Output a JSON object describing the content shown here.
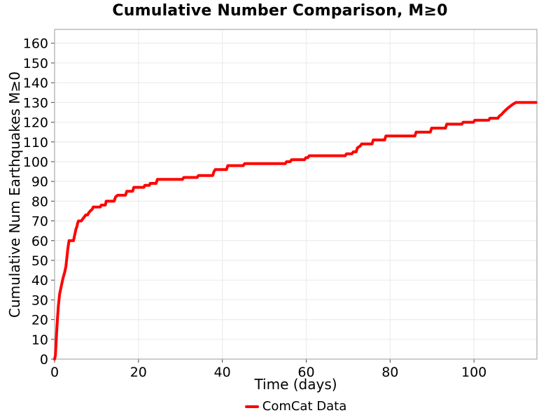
{
  "figure": {
    "background": "#ffffff"
  },
  "chart_data": {
    "type": "line",
    "title": "Cumulative Number Comparison, M≥0",
    "xlabel": "Time (days)",
    "ylabel": "Cumulative Num Earthquakes M≥0",
    "xlim": [
      0,
      115
    ],
    "ylim": [
      0,
      167
    ],
    "xticks": [
      0,
      20,
      40,
      60,
      80,
      100
    ],
    "yticks": [
      0,
      10,
      20,
      30,
      40,
      50,
      60,
      70,
      80,
      90,
      100,
      110,
      120,
      130,
      140,
      150,
      160
    ],
    "grid": true,
    "legend": {
      "position": "bottom-center",
      "entries": [
        {
          "label": "ComCat Data",
          "color": "#ff0000"
        }
      ]
    },
    "colors": {
      "line": "#ff0000",
      "grid": "#ececec",
      "border": "#b0b0b0",
      "tick": "#444444",
      "text": "#000000",
      "background": "#ffffff"
    },
    "series": [
      {
        "name": "ComCat Data",
        "color": "#ff0000",
        "points": [
          [
            0,
            0
          ],
          [
            0.2,
            2
          ],
          [
            0.35,
            8
          ],
          [
            0.5,
            14
          ],
          [
            0.7,
            21
          ],
          [
            0.9,
            27
          ],
          [
            1.1,
            31
          ],
          [
            1.2,
            33
          ],
          [
            1.6,
            37
          ],
          [
            2.0,
            41
          ],
          [
            2.4,
            44
          ],
          [
            2.7,
            47
          ],
          [
            2.9,
            51
          ],
          [
            3.1,
            55
          ],
          [
            3.3,
            58
          ],
          [
            3.45,
            60
          ],
          [
            4.5,
            60
          ],
          [
            4.7,
            62
          ],
          [
            4.9,
            64
          ],
          [
            5.1,
            66
          ],
          [
            5.3,
            67
          ],
          [
            5.5,
            69
          ],
          [
            5.7,
            70
          ],
          [
            6.4,
            70
          ],
          [
            6.7,
            71
          ],
          [
            7.1,
            72
          ],
          [
            7.4,
            73
          ],
          [
            7.9,
            73
          ],
          [
            8.1,
            74
          ],
          [
            8.5,
            75
          ],
          [
            9.0,
            76
          ],
          [
            9.2,
            77
          ],
          [
            10.9,
            77
          ],
          [
            11.1,
            78
          ],
          [
            12.1,
            78
          ],
          [
            12.3,
            80
          ],
          [
            14.2,
            80
          ],
          [
            14.5,
            82
          ],
          [
            15.0,
            83
          ],
          [
            16.9,
            83
          ],
          [
            17.2,
            85
          ],
          [
            18.6,
            85
          ],
          [
            18.9,
            87
          ],
          [
            21.3,
            87
          ],
          [
            21.5,
            88
          ],
          [
            22.6,
            88
          ],
          [
            22.8,
            89
          ],
          [
            24.2,
            89
          ],
          [
            24.5,
            91
          ],
          [
            30.5,
            91
          ],
          [
            30.8,
            92
          ],
          [
            34.0,
            92
          ],
          [
            34.3,
            93
          ],
          [
            37.7,
            93
          ],
          [
            38.0,
            95
          ],
          [
            38.3,
            96
          ],
          [
            41.0,
            96
          ],
          [
            41.3,
            98
          ],
          [
            45.0,
            98
          ],
          [
            45.3,
            99
          ],
          [
            55.0,
            99
          ],
          [
            55.3,
            100
          ],
          [
            56.2,
            100
          ],
          [
            56.5,
            101
          ],
          [
            59.6,
            101
          ],
          [
            59.9,
            102
          ],
          [
            60.4,
            102
          ],
          [
            60.7,
            103
          ],
          [
            69.3,
            103
          ],
          [
            69.6,
            104
          ],
          [
            70.9,
            104
          ],
          [
            71.2,
            105
          ],
          [
            71.9,
            105
          ],
          [
            72.2,
            107
          ],
          [
            72.9,
            108
          ],
          [
            73.2,
            109
          ],
          [
            75.7,
            109
          ],
          [
            76.0,
            111
          ],
          [
            78.7,
            111
          ],
          [
            79.0,
            113
          ],
          [
            85.9,
            113
          ],
          [
            86.2,
            115
          ],
          [
            89.6,
            115
          ],
          [
            89.9,
            117
          ],
          [
            93.2,
            117
          ],
          [
            93.5,
            119
          ],
          [
            97.1,
            119
          ],
          [
            97.4,
            120
          ],
          [
            99.9,
            120
          ],
          [
            100.2,
            121
          ],
          [
            103.5,
            121
          ],
          [
            103.8,
            122
          ],
          [
            105.7,
            122
          ],
          [
            106.0,
            123
          ],
          [
            106.6,
            124
          ],
          [
            107.0,
            125
          ],
          [
            107.5,
            126
          ],
          [
            108.0,
            127
          ],
          [
            108.6,
            128
          ],
          [
            109.2,
            129
          ],
          [
            110.0,
            130
          ],
          [
            114.8,
            130
          ]
        ]
      }
    ]
  }
}
